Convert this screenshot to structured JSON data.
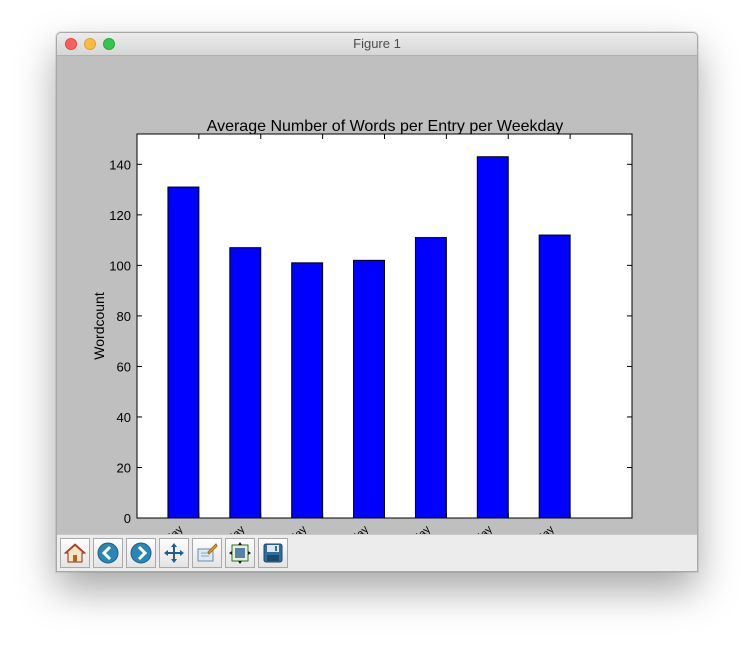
{
  "window": {
    "title": "Figure 1"
  },
  "toolbar": {
    "buttons": [
      {
        "name": "home-button",
        "icon": "home-icon"
      },
      {
        "name": "back-button",
        "icon": "back-arrow-icon"
      },
      {
        "name": "forward-button",
        "icon": "forward-arrow-icon"
      },
      {
        "name": "pan-button",
        "icon": "pan-move-icon"
      },
      {
        "name": "zoom-button",
        "icon": "zoom-rect-icon"
      },
      {
        "name": "subplots-button",
        "icon": "subplots-config-icon"
      },
      {
        "name": "save-button",
        "icon": "save-disk-icon"
      }
    ]
  },
  "chart_data": {
    "type": "bar",
    "title": "Average Number of Words per Entry per Weekday",
    "ylabel": "Wordcount",
    "xlabel": "",
    "categories": [
      "Monday",
      "Tuesday",
      "Wednesday",
      "Thursday",
      "Friday",
      "Saturday",
      "Sunday"
    ],
    "values": [
      131,
      107,
      101,
      102,
      111,
      143,
      112
    ],
    "yticks": [
      0,
      20,
      40,
      60,
      80,
      100,
      120,
      140
    ],
    "ylim": [
      0,
      152
    ],
    "xlim": [
      0,
      8
    ],
    "bar_color": "#0000ff",
    "grid": false
  }
}
